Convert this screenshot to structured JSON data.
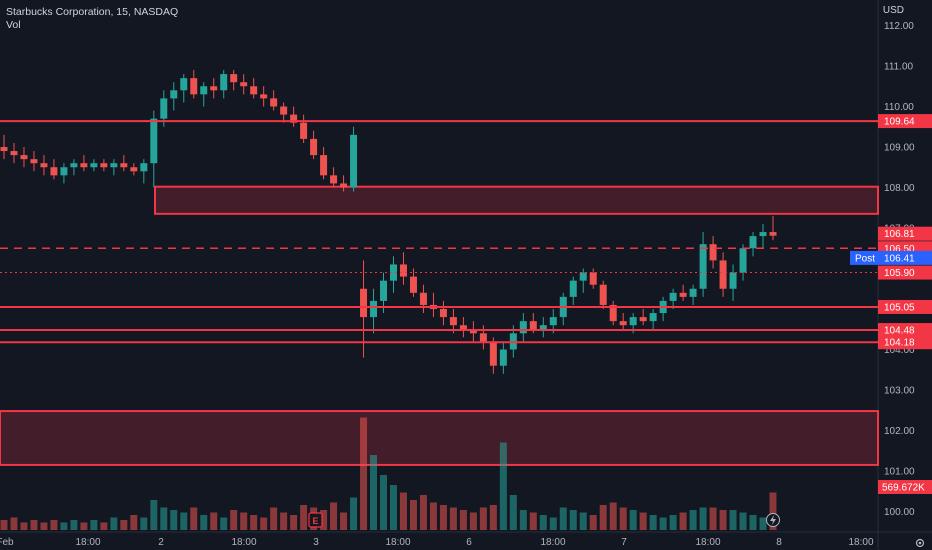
{
  "header": {
    "symbol_line": "Starbucks Corporation, 15, NASDAQ",
    "indicator": "Vol"
  },
  "axis": {
    "currency": "USD"
  },
  "colors": {
    "background": "#131722",
    "up": "#26a69a",
    "down": "#ef5350",
    "level_line": "#f23645",
    "zone_fill": "rgba(242,54,69,0.22)",
    "post_badge": "#2962ff",
    "axis_text": "#b2b5be"
  },
  "chart_data": {
    "type": "candlestick",
    "title": "Starbucks Corporation, 15, NASDAQ",
    "y_axis": {
      "ticks": [
        "112.00",
        "111.00",
        "110.00",
        "109.00",
        "108.00",
        "107.00",
        "104.00",
        "103.00",
        "102.00",
        "101.00",
        "100.00"
      ],
      "ylim": [
        99.6,
        112.4
      ]
    },
    "x_axis": {
      "ticks": [
        "Feb",
        "18:00",
        "2",
        "18:00",
        "3",
        "18:00",
        "6",
        "18:00",
        "7",
        "18:00",
        "8",
        "18:00"
      ]
    },
    "levels": [
      {
        "label": "109.64",
        "value": 109.64,
        "style": "solid"
      },
      {
        "label": "106.50",
        "value": 106.5,
        "style": "dashed"
      },
      {
        "label": "105.90",
        "value": 105.9,
        "style": "dotted"
      },
      {
        "label": "105.05",
        "value": 105.05,
        "style": "solid"
      },
      {
        "label": "104.48",
        "value": 104.48,
        "style": "solid"
      },
      {
        "label": "104.18",
        "value": 104.18,
        "style": "solid"
      }
    ],
    "zones": [
      {
        "from": 107.35,
        "to": 108.02,
        "start_date": "2 18:00"
      },
      {
        "from": 101.15,
        "to": 102.48,
        "start_date": "Feb"
      }
    ],
    "price_labels": {
      "last": "106.81",
      "post_tag": "Post",
      "post_price": "106.41",
      "volume": "569.672K"
    },
    "ohlc": [
      [
        109.0,
        109.3,
        108.7,
        108.9
      ],
      [
        108.9,
        109.1,
        108.6,
        108.8
      ],
      [
        108.8,
        109.0,
        108.5,
        108.7
      ],
      [
        108.7,
        108.9,
        108.4,
        108.6
      ],
      [
        108.6,
        108.8,
        108.3,
        108.5
      ],
      [
        108.5,
        108.7,
        108.2,
        108.3
      ],
      [
        108.3,
        108.6,
        108.1,
        108.5
      ],
      [
        108.5,
        108.7,
        108.3,
        108.6
      ],
      [
        108.6,
        108.8,
        108.4,
        108.5
      ],
      [
        108.5,
        108.7,
        108.4,
        108.6
      ],
      [
        108.6,
        108.7,
        108.4,
        108.5
      ],
      [
        108.5,
        108.7,
        108.3,
        108.6
      ],
      [
        108.6,
        108.8,
        108.4,
        108.5
      ],
      [
        108.5,
        108.6,
        108.3,
        108.4
      ],
      [
        108.4,
        108.7,
        108.1,
        108.6
      ],
      [
        108.6,
        109.9,
        108.0,
        109.7
      ],
      [
        109.7,
        110.4,
        109.5,
        110.2
      ],
      [
        110.2,
        110.6,
        109.9,
        110.4
      ],
      [
        110.4,
        110.8,
        110.1,
        110.7
      ],
      [
        110.7,
        110.9,
        110.2,
        110.3
      ],
      [
        110.3,
        110.6,
        110.0,
        110.5
      ],
      [
        110.5,
        110.7,
        110.2,
        110.4
      ],
      [
        110.4,
        110.9,
        110.2,
        110.8
      ],
      [
        110.8,
        110.9,
        110.4,
        110.6
      ],
      [
        110.6,
        110.8,
        110.3,
        110.5
      ],
      [
        110.5,
        110.7,
        110.2,
        110.3
      ],
      [
        110.3,
        110.5,
        110.0,
        110.2
      ],
      [
        110.2,
        110.4,
        109.9,
        110.0
      ],
      [
        110.0,
        110.1,
        109.6,
        109.8
      ],
      [
        109.8,
        110.0,
        109.5,
        109.6
      ],
      [
        109.6,
        109.8,
        109.1,
        109.2
      ],
      [
        109.2,
        109.4,
        108.7,
        108.8
      ],
      [
        108.8,
        109.0,
        108.2,
        108.3
      ],
      [
        108.3,
        108.5,
        108.0,
        108.1
      ],
      [
        108.1,
        108.3,
        107.9,
        108.0
      ],
      [
        108.0,
        109.5,
        107.9,
        109.3
      ],
      [
        105.5,
        106.2,
        103.8,
        104.8
      ],
      [
        104.8,
        105.5,
        104.4,
        105.2
      ],
      [
        105.2,
        105.9,
        104.9,
        105.7
      ],
      [
        105.7,
        106.3,
        105.4,
        106.1
      ],
      [
        106.1,
        106.4,
        105.6,
        105.8
      ],
      [
        105.8,
        106.0,
        105.3,
        105.4
      ],
      [
        105.4,
        105.6,
        104.9,
        105.1
      ],
      [
        105.1,
        105.4,
        104.8,
        105.0
      ],
      [
        105.0,
        105.2,
        104.6,
        104.8
      ],
      [
        104.8,
        105.0,
        104.4,
        104.6
      ],
      [
        104.6,
        104.8,
        104.3,
        104.5
      ],
      [
        104.5,
        104.7,
        104.2,
        104.4
      ],
      [
        104.4,
        104.6,
        104.0,
        104.2
      ],
      [
        104.2,
        104.3,
        103.4,
        103.6
      ],
      [
        103.6,
        104.2,
        103.4,
        104.0
      ],
      [
        104.0,
        104.6,
        103.8,
        104.4
      ],
      [
        104.4,
        104.9,
        104.2,
        104.7
      ],
      [
        104.7,
        104.9,
        104.4,
        104.5
      ],
      [
        104.5,
        104.8,
        104.3,
        104.6
      ],
      [
        104.6,
        105.0,
        104.4,
        104.8
      ],
      [
        104.8,
        105.4,
        104.6,
        105.3
      ],
      [
        105.3,
        105.8,
        105.1,
        105.7
      ],
      [
        105.7,
        106.0,
        105.4,
        105.9
      ],
      [
        105.9,
        106.0,
        105.5,
        105.6
      ],
      [
        105.6,
        105.7,
        105.0,
        105.1
      ],
      [
        105.1,
        105.2,
        104.6,
        104.7
      ],
      [
        104.7,
        104.9,
        104.5,
        104.6
      ],
      [
        104.6,
        104.9,
        104.4,
        104.8
      ],
      [
        104.8,
        105.0,
        104.6,
        104.7
      ],
      [
        104.7,
        105.0,
        104.5,
        104.9
      ],
      [
        104.9,
        105.3,
        104.7,
        105.2
      ],
      [
        105.2,
        105.5,
        105.0,
        105.4
      ],
      [
        105.4,
        105.6,
        105.2,
        105.3
      ],
      [
        105.3,
        105.6,
        105.1,
        105.5
      ],
      [
        105.5,
        106.9,
        105.3,
        106.6
      ],
      [
        106.6,
        106.8,
        106.0,
        106.2
      ],
      [
        106.2,
        106.4,
        105.3,
        105.5
      ],
      [
        105.5,
        106.1,
        105.2,
        105.9
      ],
      [
        105.9,
        106.6,
        105.7,
        106.5
      ],
      [
        106.5,
        106.9,
        106.3,
        106.8
      ],
      [
        106.8,
        107.1,
        106.5,
        106.9
      ],
      [
        106.9,
        107.3,
        106.7,
        106.81
      ]
    ],
    "volume": [
      4,
      5,
      3,
      4,
      3,
      4,
      3,
      4,
      3,
      4,
      3,
      5,
      4,
      6,
      5,
      12,
      9,
      8,
      7,
      9,
      6,
      7,
      5,
      8,
      7,
      6,
      5,
      9,
      7,
      6,
      10,
      9,
      8,
      11,
      7,
      13,
      45,
      30,
      22,
      18,
      15,
      12,
      14,
      11,
      10,
      9,
      8,
      7,
      9,
      10,
      35,
      14,
      8,
      7,
      6,
      5,
      9,
      8,
      7,
      6,
      10,
      11,
      9,
      8,
      7,
      6,
      5,
      6,
      7,
      8,
      9,
      9,
      8,
      8,
      7,
      6,
      5,
      15
    ]
  }
}
